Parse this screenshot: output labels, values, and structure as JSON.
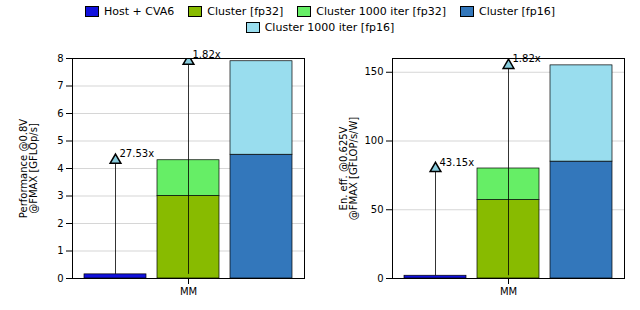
{
  "chart_data": [
    {
      "type": "bar",
      "stacked": true,
      "grid": true,
      "legend": "top",
      "ylabel": "Performance @0.8V\n@FMAX [GFLOp/s]",
      "categories": [
        null,
        "MM",
        null
      ],
      "ylim": [
        0,
        8
      ],
      "yticks": [
        0,
        1,
        2,
        3,
        4,
        5,
        6,
        7,
        8
      ],
      "series": [
        {
          "name": "Host + CVA6",
          "color": "#1111dd",
          "values": [
            0.15,
            null,
            null
          ]
        },
        {
          "name": "Cluster [fp32]",
          "color": "#88bb00",
          "values": [
            null,
            3.0,
            null
          ]
        },
        {
          "name": "Cluster 1000 iter [fp32]",
          "color": "#66ee66",
          "values": [
            null,
            1.3,
            null
          ]
        },
        {
          "name": "Cluster [fp16]",
          "color": "#3377bb",
          "values": [
            null,
            null,
            4.5
          ]
        },
        {
          "name": "Cluster 1000 iter [fp16]",
          "color": "#99ddee",
          "values": [
            null,
            null,
            3.4
          ]
        }
      ],
      "annotations": [
        {
          "text": "27.53x",
          "x": 0,
          "y": 4.3
        },
        {
          "text": "1.82x",
          "x": 1,
          "y": 7.9
        }
      ]
    },
    {
      "type": "bar",
      "stacked": true,
      "grid": true,
      "ylabel": "En. eff. @0.625V\n@FMAX [GFLOP/s/W]",
      "categories": [
        null,
        "MM",
        null
      ],
      "ylim": [
        0,
        160
      ],
      "yticks": [
        0,
        50,
        100,
        150
      ],
      "series": [
        {
          "name": "Host + CVA6",
          "color": "#1111dd",
          "values": [
            2.0,
            null,
            null
          ]
        },
        {
          "name": "Cluster [fp32]",
          "color": "#88bb00",
          "values": [
            null,
            57.0,
            null
          ]
        },
        {
          "name": "Cluster 1000 iter [fp32]",
          "color": "#66ee66",
          "values": [
            null,
            23.0,
            null
          ]
        },
        {
          "name": "Cluster [fp16]",
          "color": "#3377bb",
          "values": [
            null,
            null,
            85.0
          ]
        },
        {
          "name": "Cluster 1000 iter [fp16]",
          "color": "#99ddee",
          "values": [
            null,
            null,
            70.0
          ]
        }
      ],
      "annotations": [
        {
          "text": "43.15x",
          "x": 0,
          "y": 80.0
        },
        {
          "text": "1.82x",
          "x": 1,
          "y": 155.0
        }
      ]
    }
  ]
}
